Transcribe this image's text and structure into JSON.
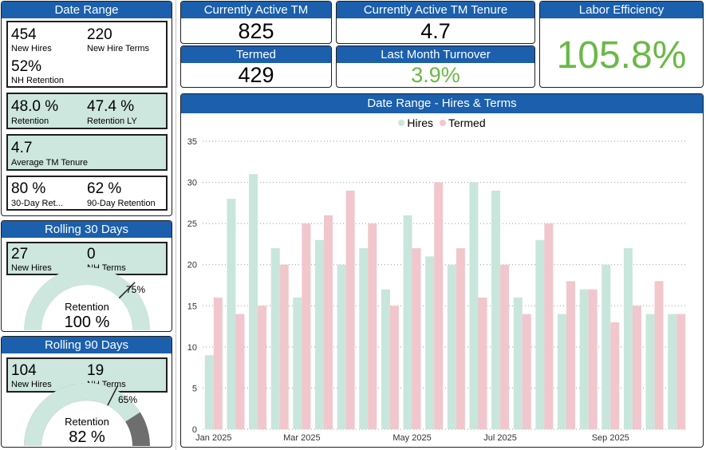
{
  "date_range": {
    "title": "Date Range",
    "new_hires": {
      "value": "454",
      "label": "New Hires"
    },
    "new_hire_terms": {
      "value": "220",
      "label": "New Hire Terms"
    },
    "nh_retention": {
      "value": "52%",
      "label": "NH Retention"
    },
    "retention": {
      "value": "48.0 %",
      "label": "Retention"
    },
    "retention_ly": {
      "value": "47.4 %",
      "label": "Retention LY"
    },
    "avg_tenure": {
      "value": "4.7",
      "label": "Average TM Tenure"
    },
    "day30": {
      "value": "80 %",
      "label": "30-Day Ret..."
    },
    "day90": {
      "value": "62 %",
      "label": "90-Day Retention"
    }
  },
  "rolling30": {
    "title": "Rolling 30 Days",
    "new_hires": {
      "value": "27",
      "label": "New Hires"
    },
    "nh_terms": {
      "value": "0",
      "label": "NH Terms"
    },
    "gauge": {
      "label": "Retention",
      "value_text": "100 %",
      "value": 100,
      "target_text": "75%",
      "target": 75
    }
  },
  "rolling90": {
    "title": "Rolling 90 Days",
    "new_hires": {
      "value": "104",
      "label": "New Hires"
    },
    "nh_terms": {
      "value": "19",
      "label": "NH Terms"
    },
    "gauge": {
      "label": "Retention",
      "value_text": "82 %",
      "value": 82,
      "target_text": "65%",
      "target": 65
    }
  },
  "kpis": {
    "active_tm": {
      "title": "Currently Active TM",
      "value": "825"
    },
    "tenure": {
      "title": "Currently Active TM Tenure",
      "value": "4.7"
    },
    "termed": {
      "title": "Termed",
      "value": "429"
    },
    "turnover": {
      "title": "Last Month Turnover",
      "value": "3.9%"
    },
    "labor": {
      "title": "Labor Efficiency",
      "value": "105.8%"
    }
  },
  "colors": {
    "header_blue": "#1b5fad",
    "card_green": "#cde6de",
    "hires": "#c8e6dc",
    "termed": "#f2c6cd",
    "kpi_green": "#6ab847",
    "gauge_fill": "#cde6de",
    "gauge_rest": "#6e6e6e"
  },
  "chart_data": {
    "type": "bar",
    "title": "Date Range - Hires & Terms",
    "ylim": [
      0,
      35
    ],
    "yticks": [
      0,
      5,
      10,
      15,
      20,
      25,
      30,
      35
    ],
    "grid": true,
    "legend_position": "top-center",
    "x_tick_labels": [
      {
        "index": 0,
        "label": "Jan 2025"
      },
      {
        "index": 4,
        "label": "Mar 2025"
      },
      {
        "index": 9,
        "label": "May 2025"
      },
      {
        "index": 13,
        "label": "Jul 2025"
      },
      {
        "index": 18,
        "label": "Sep 2025"
      }
    ],
    "series": [
      {
        "name": "Hires",
        "color": "#c8e6dc",
        "values": [
          9,
          28,
          31,
          22,
          16,
          23,
          20,
          22,
          17,
          26,
          21,
          20,
          30,
          29,
          16,
          23,
          14,
          17,
          20,
          22,
          14,
          14
        ]
      },
      {
        "name": "Termed",
        "color": "#f2c6cd",
        "values": [
          16,
          14,
          15,
          20,
          25,
          26,
          29,
          25,
          15,
          22,
          30,
          22,
          16,
          20,
          14,
          25,
          18,
          17,
          13,
          15,
          18,
          14
        ]
      }
    ]
  }
}
